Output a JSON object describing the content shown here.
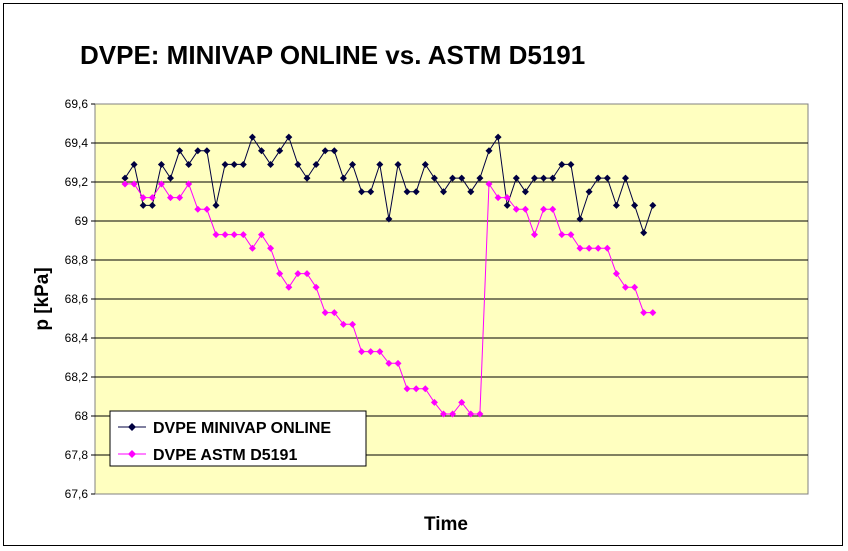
{
  "chart_data": {
    "type": "line",
    "title": "DVPE: MINIVAP ONLINE vs. ASTM D5191",
    "xlabel": "Time",
    "ylabel": "p [kPa]",
    "ylim": [
      67.6,
      69.6
    ],
    "yticks": [
      "67,6",
      "67,8",
      "68",
      "68,2",
      "68,4",
      "68,6",
      "68,8",
      "69",
      "69,2",
      "69,4",
      "69,6"
    ],
    "grid": true,
    "plot_background": "#ffffc0",
    "legend_position": "bottom-left",
    "series": [
      {
        "name": "DVPE MINIVAP ONLINE",
        "color": "#000040",
        "marker": "diamond",
        "values": [
          69.22,
          69.29,
          69.08,
          69.08,
          69.29,
          69.22,
          69.36,
          69.29,
          69.36,
          69.36,
          69.08,
          69.29,
          69.29,
          69.29,
          69.43,
          69.36,
          69.29,
          69.36,
          69.43,
          69.29,
          69.22,
          69.29,
          69.36,
          69.36,
          69.22,
          69.29,
          69.15,
          69.15,
          69.29,
          69.01,
          69.29,
          69.15,
          69.15,
          69.29,
          69.22,
          69.15,
          69.22,
          69.22,
          69.15,
          69.22,
          69.36,
          69.43,
          69.08,
          69.22,
          69.15,
          69.22,
          69.22,
          69.22,
          69.29,
          69.29,
          69.01,
          69.15,
          69.22,
          69.22,
          69.08,
          69.22,
          69.08,
          68.94,
          69.08
        ]
      },
      {
        "name": "DVPE ASTM D5191",
        "color": "#ff00ff",
        "marker": "diamond",
        "values": [
          69.19,
          69.19,
          69.12,
          69.12,
          69.19,
          69.12,
          69.12,
          69.19,
          69.06,
          69.06,
          68.93,
          68.93,
          68.93,
          68.93,
          68.86,
          68.93,
          68.86,
          68.73,
          68.66,
          68.73,
          68.73,
          68.66,
          68.53,
          68.53,
          68.47,
          68.47,
          68.33,
          68.33,
          68.33,
          68.27,
          68.27,
          68.14,
          68.14,
          68.14,
          68.07,
          68.01,
          68.01,
          68.07,
          68.01,
          68.01,
          69.19,
          69.12,
          69.12,
          69.06,
          69.06,
          68.93,
          69.06,
          69.06,
          68.93,
          68.93,
          68.86,
          68.86,
          68.86,
          68.86,
          68.73,
          68.66,
          68.66,
          68.53,
          68.53
        ]
      }
    ]
  }
}
